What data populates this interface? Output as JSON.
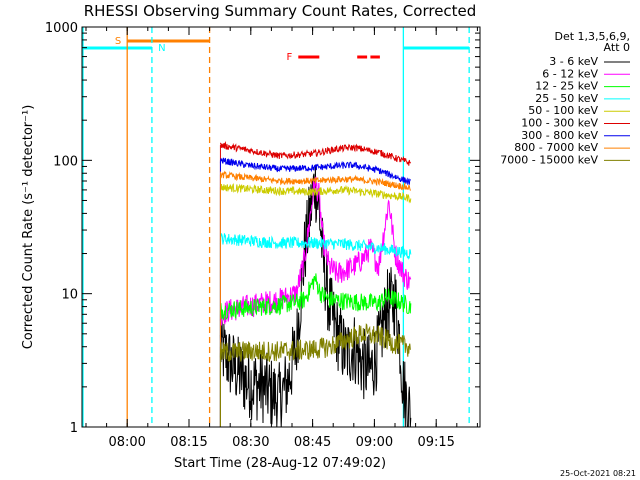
{
  "chart_data": {
    "type": "line",
    "title": "RHESSI Observing Summary Count Rates, Corrected",
    "xlabel": "Start Time (28-Aug-12 07:49:02)",
    "ylabel": "Corrected Count Rate (s⁻¹ detector⁻¹)",
    "yscale": "log",
    "ylim": [
      1,
      1000
    ],
    "xlim_minutes": [
      0,
      96.6
    ],
    "xticks": [
      {
        "label": "08:00",
        "min": 10.97
      },
      {
        "label": "08:15",
        "min": 25.97
      },
      {
        "label": "08:30",
        "min": 40.97
      },
      {
        "label": "08:45",
        "min": 55.97
      },
      {
        "label": "09:00",
        "min": 70.97
      },
      {
        "label": "09:15",
        "min": 85.97
      }
    ],
    "yticks": [
      {
        "label": "1",
        "value": 1
      },
      {
        "label": "10",
        "value": 10
      },
      {
        "label": "100",
        "value": 100
      },
      {
        "label": "1000",
        "value": 1000
      }
    ],
    "legend_header": [
      "Det 1,3,5,6,9,",
      "Att 0"
    ],
    "legend_position": "right",
    "data_window_minutes": [
      33.6,
      79.8
    ],
    "series": [
      {
        "name": "3 - 6 keV",
        "color": "#000000",
        "x": [
          33.6,
          36,
          40,
          44,
          48,
          50,
          52,
          54,
          56.5,
          57.5,
          58.5,
          60,
          62,
          64,
          66,
          68,
          70,
          72,
          74,
          76,
          77,
          78,
          79.8
        ],
        "y": [
          4,
          3,
          2.2,
          2,
          1.6,
          2.2,
          4,
          20,
          70,
          45,
          18,
          8,
          5,
          3.5,
          4,
          3,
          2.6,
          4,
          8,
          9,
          5,
          2,
          1.2
        ]
      },
      {
        "name": "6 - 12 keV",
        "color": "#ff00ff",
        "x": [
          33.6,
          36,
          40,
          44,
          48,
          52,
          54,
          56.5,
          57.5,
          58.5,
          60,
          62,
          64,
          66,
          68,
          70,
          72,
          73.5,
          74.5,
          76,
          78,
          79.8
        ],
        "y": [
          7,
          7.5,
          8,
          8.5,
          9,
          10,
          18,
          70,
          55,
          25,
          16,
          14,
          15,
          16,
          18,
          22,
          16,
          32,
          50,
          20,
          14,
          12
        ]
      },
      {
        "name": "12 - 25 keV",
        "color": "#00ff00",
        "x": [
          33.6,
          40,
          48,
          52,
          54,
          56.5,
          58,
          60,
          64,
          68,
          72,
          74,
          76,
          79.8
        ],
        "y": [
          7.5,
          7.8,
          8.2,
          8.6,
          9,
          13,
          10,
          9,
          8.8,
          8.6,
          8.5,
          9.5,
          9,
          8
        ]
      },
      {
        "name": "25 - 50 keV",
        "color": "#00ffff",
        "x": [
          33.6,
          40,
          48,
          56,
          64,
          72,
          79.8
        ],
        "y": [
          26,
          25,
          24,
          24,
          23.5,
          22,
          20
        ]
      },
      {
        "name": "50 - 100 keV",
        "color": "#cccc00",
        "x": [
          33.6,
          40,
          48,
          56,
          62,
          66,
          72,
          79.8
        ],
        "y": [
          63,
          61,
          59,
          58,
          60,
          59,
          56,
          52
        ]
      },
      {
        "name": "100 - 300 keV",
        "color": "#dd0000",
        "x": [
          33.6,
          40,
          48,
          56,
          62,
          66,
          72,
          79.8
        ],
        "y": [
          130,
          120,
          108,
          112,
          122,
          125,
          115,
          95
        ]
      },
      {
        "name": "300 - 800 keV",
        "color": "#0000ee",
        "x": [
          33.6,
          40,
          48,
          56,
          62,
          66,
          72,
          79.8
        ],
        "y": [
          100,
          92,
          86,
          88,
          91,
          92,
          84,
          68
        ]
      },
      {
        "name": "800 - 7000 keV",
        "color": "#ff8000",
        "x": [
          33.6,
          40,
          48,
          56,
          62,
          66,
          72,
          79.8
        ],
        "y": [
          78,
          74,
          70,
          70,
          72,
          72,
          69,
          62
        ]
      },
      {
        "name": "7000 - 15000 keV",
        "color": "#808000",
        "x": [
          33.6,
          40,
          48,
          56,
          60,
          64,
          68,
          72,
          76,
          79.8
        ],
        "y": [
          3.6,
          3.7,
          3.7,
          3.8,
          4,
          4.5,
          5,
          4.8,
          4.2,
          4
        ]
      }
    ],
    "annotations": {
      "S": {
        "label": "S",
        "color": "#ff8000",
        "start_min": 10.97,
        "end_min": 30.97
      },
      "N": {
        "label": "N",
        "color": "#00ffff",
        "start_min": 0,
        "end_min": 16.97
      },
      "F": {
        "label": "F",
        "color": "#ff0000",
        "segments": [
          [
            52.5,
            57.6
          ],
          [
            66.8,
            69.2
          ],
          [
            70,
            72.3
          ]
        ]
      },
      "night_bands": [
        {
          "start_min": 0,
          "end_min": 16.97,
          "color": "#00ffff"
        },
        {
          "start_min": 78.0,
          "end_min": 93.97,
          "color": "#00ffff"
        }
      ],
      "saa_vlines": [
        {
          "min": 10.97,
          "style": "solid",
          "color": "#ff8000"
        },
        {
          "min": 30.97,
          "style": "dashed",
          "color": "#ff8000"
        },
        {
          "min": 16.97,
          "style": "dashed",
          "color": "#00ffff"
        },
        {
          "min": 93.97,
          "style": "dashed",
          "color": "#00ffff"
        }
      ]
    }
  },
  "footer": {
    "timestamp": "25-Oct-2021 08:21"
  }
}
